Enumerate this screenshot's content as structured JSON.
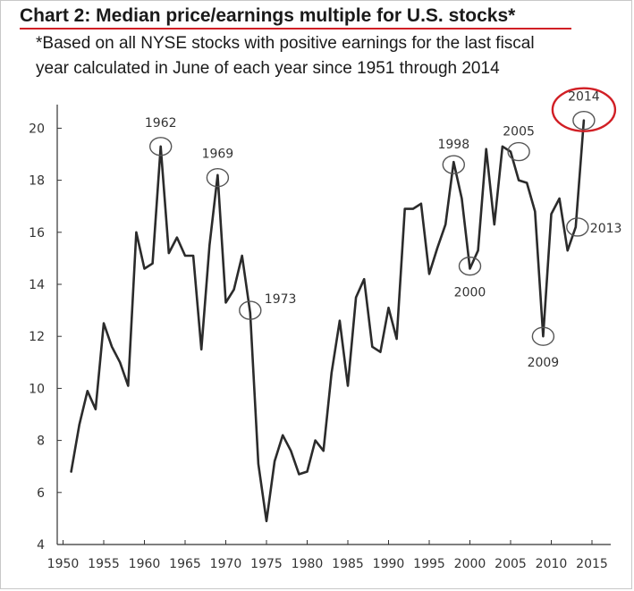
{
  "header": {
    "title": "Chart 2: Median price/earnings multiple for U.S. stocks*",
    "subtitle_line1": "*Based on all NYSE stocks with positive earnings for the last fiscal",
    "subtitle_line2": "year calculated in June of each year since 1951 through 2014"
  },
  "colors": {
    "line": "#2b2b2b",
    "axis": "#333333",
    "title_rule": "#d11f25",
    "highlight_circle": "#d11f25"
  },
  "chart_data": {
    "type": "line",
    "title": "Chart 2: Median price/earnings multiple for U.S. stocks*",
    "xlabel": "",
    "ylabel": "",
    "xlim": [
      1949,
      2016
    ],
    "ylim": [
      4,
      21
    ],
    "grid": false,
    "x_ticks": [
      1950,
      1955,
      1960,
      1965,
      1970,
      1975,
      1980,
      1985,
      1990,
      1995,
      2000,
      2005,
      2010,
      2015
    ],
    "y_ticks": [
      4,
      6,
      8,
      10,
      12,
      14,
      16,
      18,
      20
    ],
    "series": [
      {
        "x": [
          1951,
          1952,
          1953,
          1954,
          1955,
          1956,
          1957,
          1958,
          1959,
          1960,
          1961,
          1962,
          1963,
          1964,
          1965,
          1966,
          1967,
          1968,
          1969,
          1970,
          1971,
          1972,
          1973,
          1974,
          1975,
          1976,
          1977,
          1978,
          1979,
          1980,
          1981,
          1982,
          1983,
          1984,
          1985,
          1986,
          1987,
          1988,
          1989,
          1990,
          1991,
          1992,
          1993,
          1994,
          1995,
          1996,
          1997,
          1998,
          1999,
          2000,
          2001,
          2002,
          2003,
          2004,
          2005,
          2006,
          2007,
          2008,
          2009,
          2010,
          2011,
          2012,
          2013,
          2014
        ],
        "values": [
          6.8,
          8.6,
          9.9,
          9.2,
          12.5,
          11.6,
          11.0,
          10.1,
          16.0,
          14.6,
          14.8,
          19.3,
          15.2,
          15.8,
          15.1,
          15.1,
          11.5,
          15.5,
          18.2,
          13.3,
          13.8,
          15.1,
          12.9,
          7.1,
          4.9,
          7.2,
          8.2,
          7.6,
          6.7,
          6.8,
          8.0,
          7.6,
          10.6,
          12.6,
          10.1,
          13.5,
          14.2,
          11.6,
          11.4,
          13.1,
          11.9,
          16.9,
          16.9,
          17.1,
          14.4,
          15.4,
          16.3,
          18.7,
          17.3,
          14.6,
          15.3,
          19.2,
          16.3,
          19.3,
          19.1,
          18.0,
          17.9,
          16.8,
          12.0,
          16.7,
          17.3,
          15.3,
          16.2,
          20.3
        ]
      }
    ],
    "annotations": [
      {
        "label": "1962",
        "x": 1962,
        "y": 19.3
      },
      {
        "label": "1969",
        "x": 1969,
        "y": 18.1
      },
      {
        "label": "1973",
        "x": 1973,
        "y": 13.0
      },
      {
        "label": "1998",
        "x": 1998,
        "y": 18.6
      },
      {
        "label": "2000",
        "x": 2000,
        "y": 14.7
      },
      {
        "label": "2005",
        "x": 2006,
        "y": 19.1
      },
      {
        "label": "2009",
        "x": 2009,
        "y": 12.0
      },
      {
        "label": "2013",
        "x": 2013,
        "y": 16.2
      },
      {
        "label": "2014",
        "x": 2014,
        "y": 20.3
      }
    ]
  }
}
